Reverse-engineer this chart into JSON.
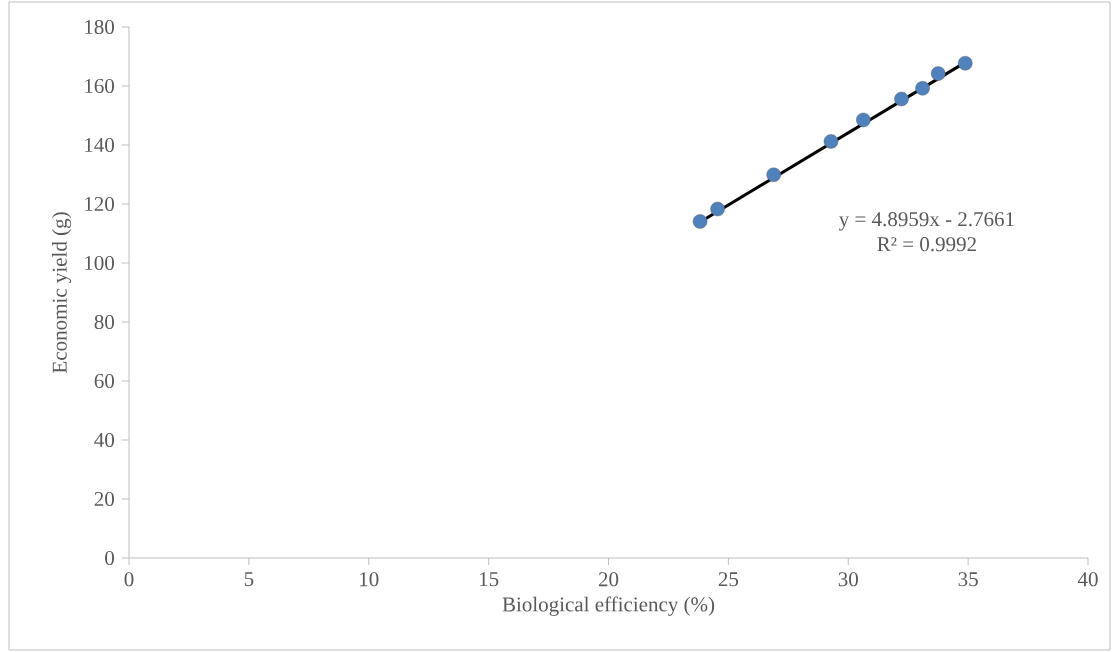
{
  "chart_data": {
    "type": "scatter",
    "xlabel": "Biological efficiency (%)",
    "ylabel": "Economic yield (g)",
    "xlim": [
      0,
      40
    ],
    "xticks": [
      0,
      5,
      10,
      15,
      20,
      25,
      30,
      35,
      40
    ],
    "ylim": [
      0,
      180
    ],
    "yticks": [
      0,
      20,
      40,
      60,
      80,
      100,
      120,
      140,
      160,
      180
    ],
    "grid": false,
    "series": [
      {
        "marker": "circle",
        "color": "#4f81bd",
        "x": [
          23.82,
          24.55,
          26.89,
          29.28,
          30.63,
          32.22,
          33.1,
          33.75,
          34.88
        ],
        "values": [
          114.1,
          118.3,
          129.9,
          141.2,
          148.5,
          155.6,
          159.2,
          164.2,
          167.7
        ]
      },
      {
        "type": "line",
        "marker": "none",
        "color": "#000000",
        "x": [
          23.82,
          34.88
        ],
        "values": [
          113.9,
          168.0
        ]
      }
    ],
    "annotations": [
      "y = 4.8959x - 2.7661",
      "R² = 0.9992"
    ]
  }
}
